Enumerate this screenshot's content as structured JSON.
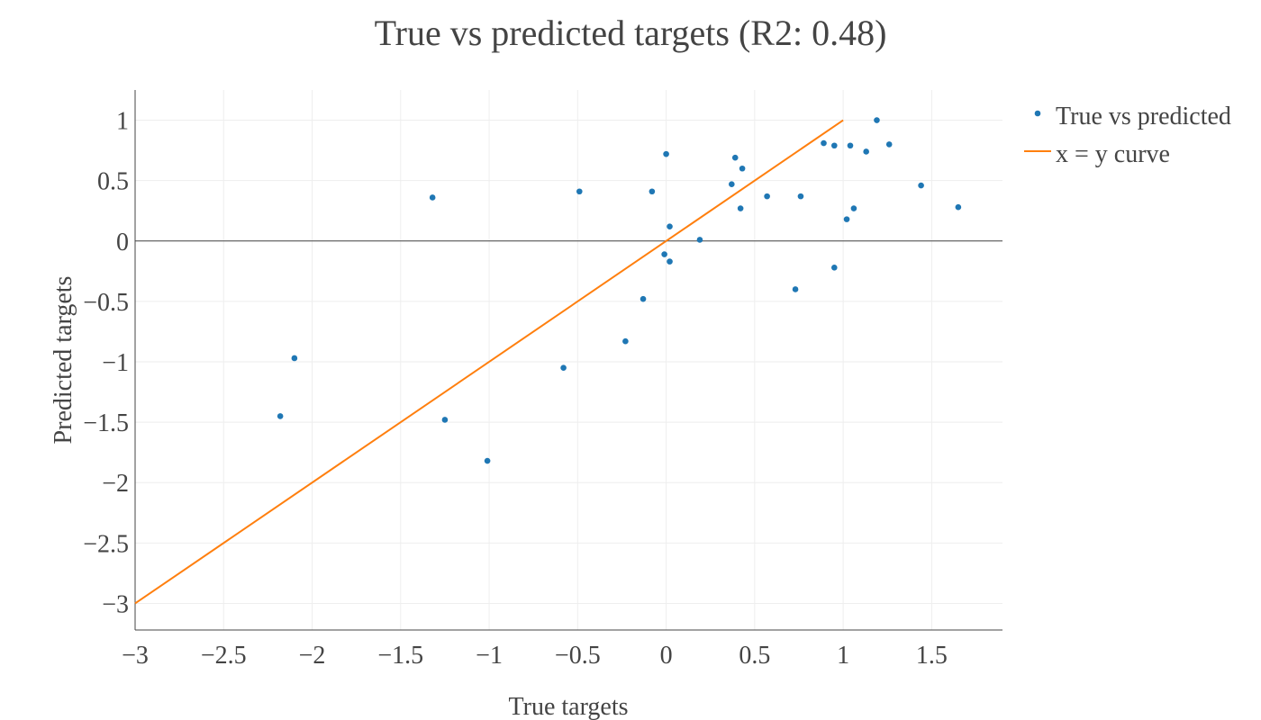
{
  "chart_data": {
    "type": "scatter",
    "title": "True vs predicted targets (R2: 0.48)",
    "xlabel": "True targets",
    "ylabel": "Predicted targets",
    "xlim": [
      -3,
      1.9
    ],
    "ylim": [
      -3.22,
      1.25
    ],
    "x_ticks": [
      -3,
      -2.5,
      -2,
      -1.5,
      -1,
      -0.5,
      0,
      0.5,
      1,
      1.5
    ],
    "x_tick_labels": [
      "−3",
      "−2.5",
      "−2",
      "−1.5",
      "−1",
      "−0.5",
      "0",
      "0.5",
      "1",
      "1.5"
    ],
    "y_ticks": [
      1,
      0.5,
      0,
      -0.5,
      -1,
      -1.5,
      -2,
      -2.5,
      -3
    ],
    "y_tick_labels": [
      "1",
      "0.5",
      "0",
      "−0.5",
      "−1",
      "−1.5",
      "−2",
      "−2.5",
      "−3"
    ],
    "grid": true,
    "legend_position": "top-right",
    "series": [
      {
        "name": "True vs predicted",
        "kind": "markers",
        "color": "#1f77b4",
        "points": [
          [
            -2.18,
            -1.45
          ],
          [
            -2.1,
            -0.97
          ],
          [
            -1.32,
            0.36
          ],
          [
            -1.25,
            -1.48
          ],
          [
            -1.01,
            -1.82
          ],
          [
            -0.58,
            -1.05
          ],
          [
            -0.49,
            0.41
          ],
          [
            -0.23,
            -0.83
          ],
          [
            -0.13,
            -0.48
          ],
          [
            -0.08,
            0.41
          ],
          [
            -0.01,
            -0.11
          ],
          [
            0.0,
            0.72
          ],
          [
            0.02,
            0.12
          ],
          [
            0.02,
            -0.17
          ],
          [
            0.19,
            0.01
          ],
          [
            0.37,
            0.47
          ],
          [
            0.39,
            0.69
          ],
          [
            0.42,
            0.27
          ],
          [
            0.43,
            0.6
          ],
          [
            0.57,
            0.37
          ],
          [
            0.73,
            -0.4
          ],
          [
            0.76,
            0.37
          ],
          [
            0.89,
            0.81
          ],
          [
            0.95,
            0.79
          ],
          [
            0.95,
            -0.22
          ],
          [
            1.02,
            0.18
          ],
          [
            1.04,
            0.79
          ],
          [
            1.06,
            0.27
          ],
          [
            1.13,
            0.74
          ],
          [
            1.19,
            1.0
          ],
          [
            1.26,
            0.8
          ],
          [
            1.44,
            0.46
          ],
          [
            1.65,
            0.28
          ]
        ]
      },
      {
        "name": "x = y curve",
        "kind": "line",
        "color": "#ff7f0e",
        "points": [
          [
            -3,
            -3
          ],
          [
            1,
            1
          ]
        ]
      }
    ]
  }
}
